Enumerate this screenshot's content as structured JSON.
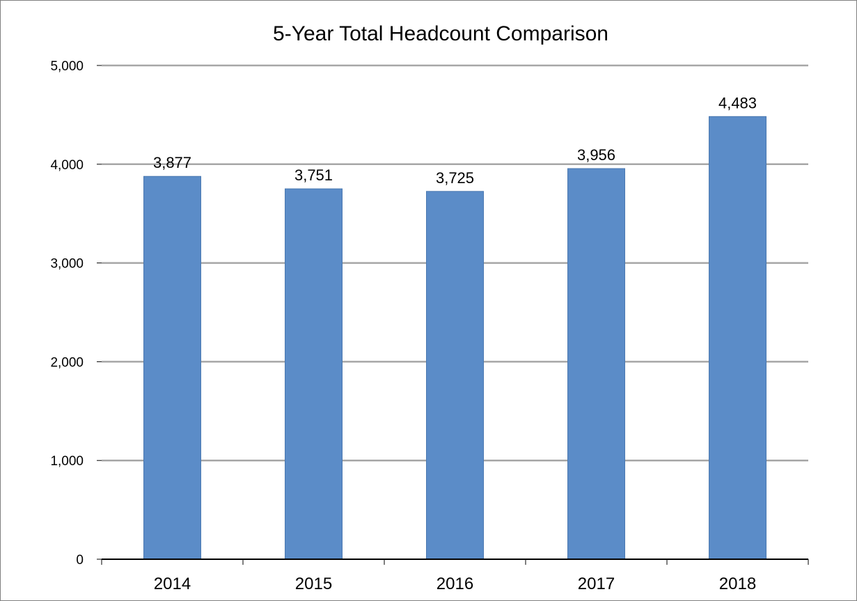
{
  "chart_data": {
    "type": "bar",
    "title": "5-Year Total Headcount Comparison",
    "categories": [
      "2014",
      "2015",
      "2016",
      "2017",
      "2018"
    ],
    "values": [
      3877,
      3751,
      3725,
      3956,
      4483
    ],
    "data_labels": [
      "3,877",
      "3,751",
      "3,725",
      "3,956",
      "4,483"
    ],
    "ylim": [
      0,
      5000
    ],
    "yticks": [
      0,
      1000,
      2000,
      3000,
      4000,
      5000
    ],
    "ytick_labels": [
      "0",
      "1,000",
      "2,000",
      "3,000",
      "4,000",
      "5,000"
    ],
    "xlabel": "",
    "ylabel": "",
    "grid": true,
    "legend": "none",
    "colors": {
      "bar": "#5b8cc8",
      "bar_edge": "#4a78b0",
      "grid": "#a6a6a6",
      "axis": "#000000"
    }
  }
}
